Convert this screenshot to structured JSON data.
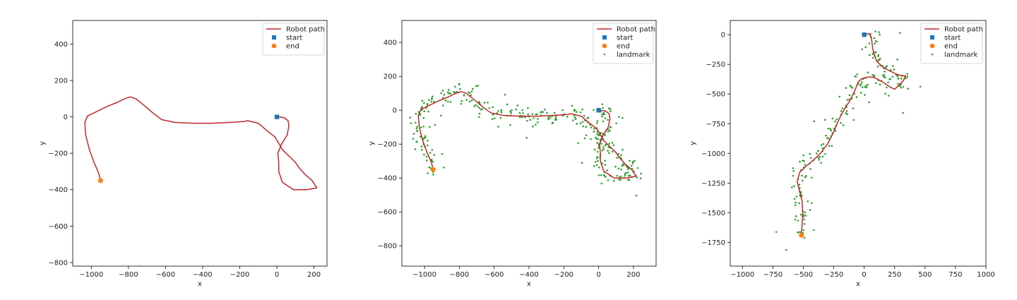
{
  "chart_data": [
    {
      "type": "line",
      "xlabel": "x",
      "ylabel": "y",
      "xlim": [
        -1100,
        270
      ],
      "ylim": [
        -820,
        530
      ],
      "xticks": [
        -1000,
        -800,
        -600,
        -400,
        -200,
        0,
        200
      ],
      "yticks": [
        -800,
        -600,
        -400,
        -200,
        0,
        200,
        400
      ],
      "grid": false,
      "legend_position": "top-right",
      "legend": [
        "Robot path",
        "start",
        "end"
      ],
      "colors": {
        "path": "#c0282a",
        "start": "#1f77b4",
        "end": "#ff7f0e",
        "landmark": "#2ca02c"
      },
      "series": [
        {
          "name": "Robot path",
          "x": [
            0,
            15,
            40,
            60,
            65,
            55,
            25,
            5,
            10,
            10,
            30,
            90,
            160,
            215,
            190,
            155,
            120,
            100,
            80,
            60,
            30,
            -10,
            -60,
            -100,
            -140,
            -160,
            -175,
            -250,
            -350,
            -450,
            -550,
            -620,
            -640,
            -660,
            -700,
            -760,
            -790,
            -820,
            -860,
            -920,
            -980,
            -1020,
            -1035,
            -1030,
            -1010,
            -985,
            -960,
            -950
          ],
          "y": [
            0,
            0,
            -5,
            -20,
            -50,
            -100,
            -150,
            -200,
            -250,
            -300,
            -360,
            -400,
            -400,
            -390,
            -350,
            -320,
            -280,
            -250,
            -230,
            -210,
            -180,
            -110,
            -70,
            -35,
            -25,
            -20,
            -25,
            -30,
            -35,
            -35,
            -30,
            -15,
            0,
            15,
            50,
            100,
            110,
            100,
            80,
            55,
            25,
            5,
            -30,
            -100,
            -180,
            -250,
            -310,
            -350
          ]
        }
      ],
      "start": {
        "x": 0,
        "y": 0
      },
      "end": {
        "x": -950,
        "y": -350
      }
    },
    {
      "type": "line",
      "xlabel": "x",
      "ylabel": "y",
      "xlim": [
        -1130,
        330
      ],
      "ylim": [
        -920,
        530
      ],
      "xticks": [
        -1000,
        -800,
        -600,
        -400,
        -200,
        0,
        200
      ],
      "yticks": [
        -800,
        -600,
        -400,
        -200,
        0,
        200,
        400
      ],
      "grid": false,
      "legend_position": "top-right",
      "legend": [
        "Robot path",
        "start",
        "end",
        "landmark"
      ],
      "series": [
        {
          "name": "Robot path",
          "x": [
            0,
            15,
            40,
            60,
            65,
            55,
            25,
            5,
            10,
            10,
            30,
            90,
            160,
            215,
            190,
            155,
            120,
            100,
            80,
            60,
            30,
            -10,
            -60,
            -100,
            -140,
            -160,
            -175,
            -250,
            -350,
            -450,
            -550,
            -620,
            -640,
            -660,
            -700,
            -760,
            -790,
            -820,
            -860,
            -920,
            -980,
            -1020,
            -1035,
            -1030,
            -1010,
            -985,
            -960,
            -950
          ],
          "y": [
            0,
            0,
            -5,
            -20,
            -50,
            -100,
            -150,
            -200,
            -250,
            -300,
            -360,
            -400,
            -400,
            -390,
            -350,
            -320,
            -280,
            -250,
            -230,
            -210,
            -180,
            -110,
            -70,
            -35,
            -25,
            -20,
            -25,
            -30,
            -35,
            -35,
            -30,
            -15,
            0,
            15,
            50,
            100,
            110,
            100,
            80,
            55,
            25,
            5,
            -30,
            -100,
            -180,
            -250,
            -310,
            -350
          ]
        }
      ],
      "start": {
        "x": 0,
        "y": 0
      },
      "end": {
        "x": -950,
        "y": -350
      }
    },
    {
      "type": "line",
      "xlabel": "x",
      "ylabel": "y",
      "xlim": [
        -1100,
        1000
      ],
      "ylim": [
        -1950,
        120
      ],
      "xticks": [
        -1000,
        -750,
        -500,
        -250,
        0,
        250,
        500,
        750,
        1000
      ],
      "yticks": [
        -1750,
        -1500,
        -1250,
        -1000,
        -750,
        -500,
        -250,
        0
      ],
      "grid": false,
      "legend_position": "top-right",
      "legend": [
        "Robot path",
        "start",
        "end",
        "landmark"
      ],
      "series": [
        {
          "name": "Robot path",
          "x": [
            0,
            40,
            60,
            70,
            100,
            150,
            200,
            240,
            280,
            340,
            320,
            280,
            250,
            210,
            170,
            120,
            80,
            40,
            -20,
            -50,
            -80,
            -120,
            -170,
            -210,
            -250,
            -300,
            -360,
            -420,
            -480,
            -530,
            -550,
            -530,
            -510,
            -505,
            -510,
            -515
          ],
          "y": [
            0,
            10,
            -30,
            -120,
            -220,
            -270,
            -300,
            -320,
            -340,
            -350,
            -390,
            -430,
            -460,
            -440,
            -410,
            -380,
            -360,
            -355,
            -370,
            -400,
            -480,
            -560,
            -640,
            -720,
            -820,
            -920,
            -1000,
            -1060,
            -1110,
            -1160,
            -1240,
            -1320,
            -1400,
            -1500,
            -1600,
            -1690
          ]
        }
      ],
      "start": {
        "x": 0,
        "y": 0
      },
      "end": {
        "x": -515,
        "y": -1690
      }
    }
  ]
}
